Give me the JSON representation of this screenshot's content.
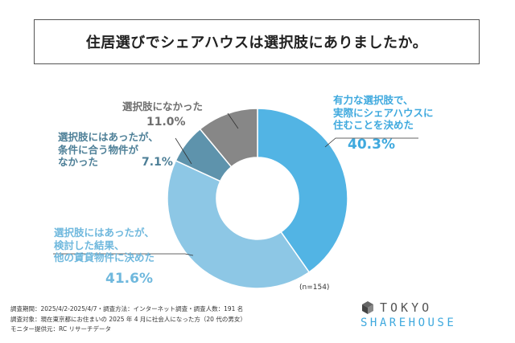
{
  "title": "住居選びでシェアハウスは選択肢にありましたか。",
  "chart_data": {
    "type": "pie",
    "donut": true,
    "slices": [
      {
        "label": "有力な選択肢で、実際にシェアハウスに住むことを決めた",
        "lines": [
          "有力な選択肢で、",
          "実際にシェアハウスに",
          "住むことを決めた"
        ],
        "value": 40.3,
        "value_label": "40.3%",
        "color": "#52b4e4"
      },
      {
        "label": "選択肢にはあったが、検討した結果、他の賃貸物件に決めた",
        "lines": [
          "選択肢にはあったが、",
          "検討した結果、",
          "他の賃貸物件に決めた"
        ],
        "value": 41.6,
        "value_label": "41.6%",
        "color": "#8dc7e5"
      },
      {
        "label": "選択肢にはあったが、条件に合う物件がなかった",
        "lines": [
          "選択肢にはあったが、",
          "条件に合う物件が",
          "なかった"
        ],
        "value": 7.1,
        "value_label": "7.1%",
        "color": "#5e93ac"
      },
      {
        "label": "選択肢になかった",
        "lines": [
          "選択肢になかった"
        ],
        "value": 11.0,
        "value_label": "11.0%",
        "color": "#878787"
      }
    ],
    "sample_note": "(n=154)"
  },
  "footer": {
    "line1": "調査期間：2025/4/2-2025/4/7・調査方法：インターネット調査・調査人数：191 名",
    "line2": "調査対象：現在東京都にお住まいの 2025 年 4 月に社会人になった方（20 代の男女）",
    "line3": "モニター提供元：RC リサーチデータ"
  },
  "logo": {
    "line1": "TOKYO",
    "line2": "SHAREHOUSE"
  },
  "colors": {
    "line": "#333333",
    "logo_cube": "#444444",
    "logo_accent": "#4fb3e3"
  }
}
